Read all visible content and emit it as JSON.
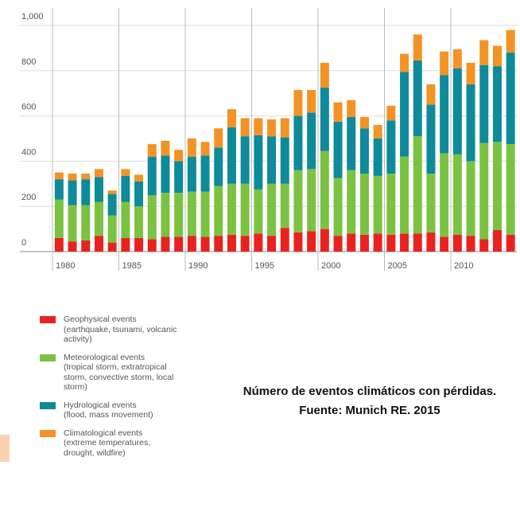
{
  "chart_data": {
    "type": "stacked_bar",
    "categories": [
      "1980",
      null,
      null,
      null,
      null,
      "1985",
      null,
      null,
      null,
      null,
      "1990",
      null,
      null,
      null,
      null,
      "1995",
      null,
      null,
      null,
      null,
      "2000",
      null,
      null,
      null,
      null,
      "2005",
      null,
      null,
      null,
      null,
      "2010",
      null,
      null,
      null,
      null
    ],
    "series": [
      {
        "name": "Geophysical events",
        "description": "(earthquake, tsunami, volcanic activity)",
        "color": "#e8231f",
        "values": [
          60,
          45,
          50,
          70,
          40,
          60,
          60,
          55,
          65,
          65,
          70,
          65,
          70,
          75,
          70,
          80,
          70,
          105,
          85,
          90,
          100,
          70,
          80,
          75,
          80,
          75,
          80,
          80,
          85,
          65,
          75,
          70,
          55,
          95,
          75
        ]
      },
      {
        "name": "Meteorological events",
        "description": "(tropical storm, extratropical storm, convective storm, local storm)",
        "color": "#7cc242",
        "values": [
          170,
          160,
          155,
          150,
          120,
          160,
          140,
          195,
          195,
          195,
          195,
          200,
          220,
          225,
          230,
          195,
          230,
          195,
          275,
          275,
          345,
          255,
          280,
          270,
          255,
          270,
          340,
          430,
          260,
          370,
          355,
          330,
          425,
          390,
          400
        ]
      },
      {
        "name": "Hydrological events",
        "description": "(flood, mass movement)",
        "color": "#0e8a9a",
        "values": [
          90,
          110,
          115,
          110,
          95,
          115,
          110,
          170,
          165,
          140,
          155,
          160,
          170,
          250,
          210,
          240,
          210,
          205,
          240,
          250,
          280,
          250,
          235,
          200,
          165,
          235,
          375,
          335,
          305,
          345,
          380,
          340,
          345,
          335,
          405
        ]
      },
      {
        "name": "Climatological events",
        "description": "(extreme temperatures, drought, wildfire)",
        "color": "#f39325",
        "values": [
          30,
          30,
          25,
          35,
          15,
          30,
          30,
          55,
          65,
          50,
          80,
          60,
          85,
          80,
          80,
          75,
          75,
          85,
          115,
          100,
          110,
          85,
          75,
          50,
          60,
          65,
          80,
          115,
          90,
          105,
          85,
          95,
          110,
          90,
          100
        ]
      }
    ],
    "ylim": [
      0,
      1000
    ],
    "yticks": [
      0,
      200,
      400,
      600,
      800,
      {
        "value": 1000,
        "label": "1,000"
      }
    ],
    "grid": true,
    "caption": "Número de eventos climáticos con pérdidas. Fuente: Munich RE. 2015"
  }
}
